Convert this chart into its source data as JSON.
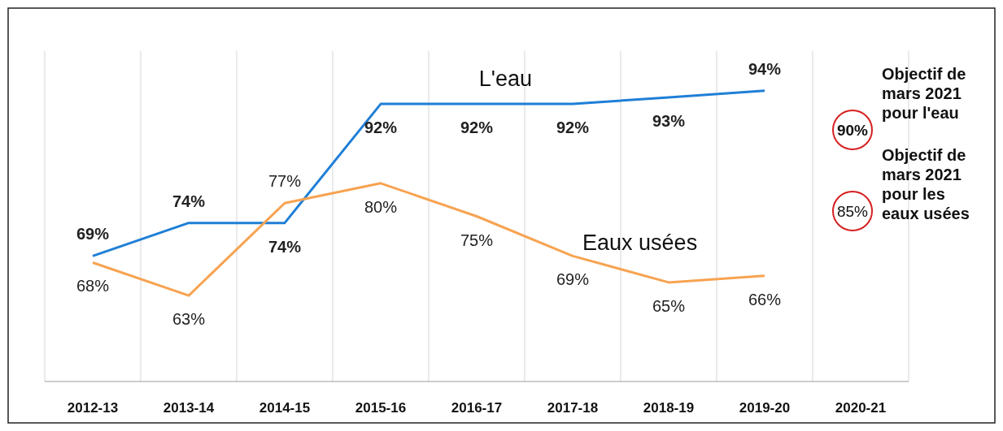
{
  "chart_data": {
    "type": "line",
    "categories": [
      "2012-13",
      "2013-14",
      "2014-15",
      "2015-16",
      "2016-17",
      "2017-18",
      "2018-19",
      "2019-20",
      "2020-21"
    ],
    "series": [
      {
        "name": "L'eau",
        "color": "#1f7fd6",
        "values": [
          69,
          74,
          74,
          92,
          92,
          92,
          93,
          94,
          null
        ],
        "value_labels": [
          "69%",
          "74%",
          "74%",
          "92%",
          "92%",
          "92%",
          "93%",
          "94%",
          null
        ]
      },
      {
        "name": "Eaux usées",
        "color": "#f7a351",
        "values": [
          68,
          63,
          77,
          80,
          75,
          69,
          65,
          66,
          null
        ],
        "value_labels": [
          "68%",
          "63%",
          "77%",
          "80%",
          "75%",
          "69%",
          "65%",
          "66%",
          null
        ]
      }
    ],
    "ylim": [
      50,
      100
    ],
    "tick_labels": "x",
    "grid": "x",
    "marker": "none",
    "line_style": "solid",
    "annotations": [
      "90%",
      "Objectif de mars 2021 pour l'eau",
      "85%",
      "Objectif de mars 2021 pour les eaux usées"
    ]
  }
}
